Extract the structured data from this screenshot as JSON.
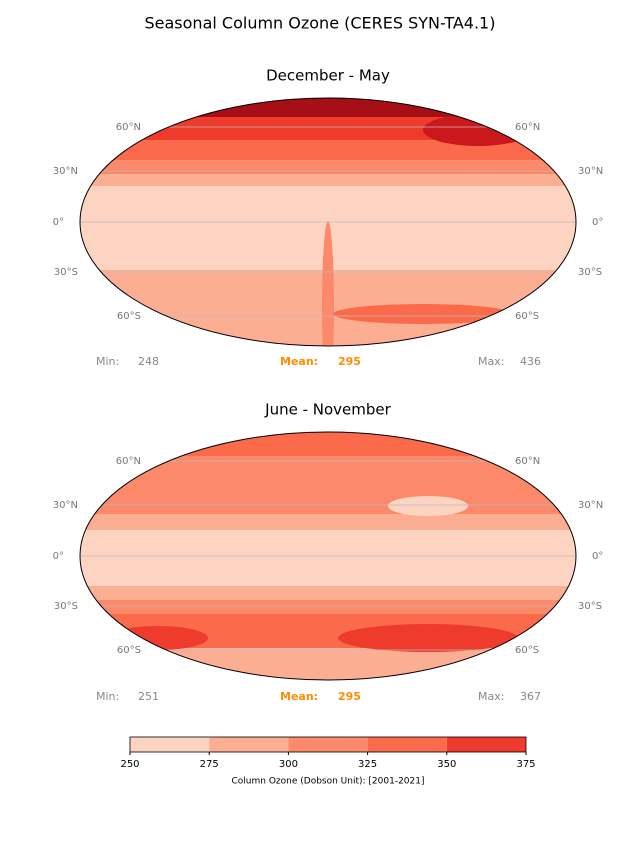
{
  "title": "Seasonal Column Ozone  (CERES SYN-TA4.1)",
  "panels": [
    {
      "title": "December - May",
      "lat_labels": [
        "60°N",
        "30°N",
        "0°",
        "30°S",
        "60°S"
      ],
      "stats": [
        {
          "label": "Min:",
          "value": 248
        },
        {
          "label": "Mean:",
          "value": 295
        },
        {
          "label": "Max:",
          "value": 436
        }
      ]
    },
    {
      "title": "June - November",
      "lat_labels": [
        "60°N",
        "30°N",
        "0°",
        "30°S",
        "60°S"
      ],
      "stats": [
        {
          "label": "Min:",
          "value": 251
        },
        {
          "label": "Mean:",
          "value": 295
        },
        {
          "label": "Max:",
          "value": 367
        }
      ]
    }
  ],
  "colorbar": {
    "ticks": [
      250,
      275,
      300,
      325,
      350,
      375
    ],
    "colors": [
      "#fdd4c2",
      "#fcae92",
      "#fc8a6a",
      "#fb6a4a",
      "#ef3b2c"
    ],
    "label": "Column Ozone (Dobson Unit): [2001-2021]"
  }
}
